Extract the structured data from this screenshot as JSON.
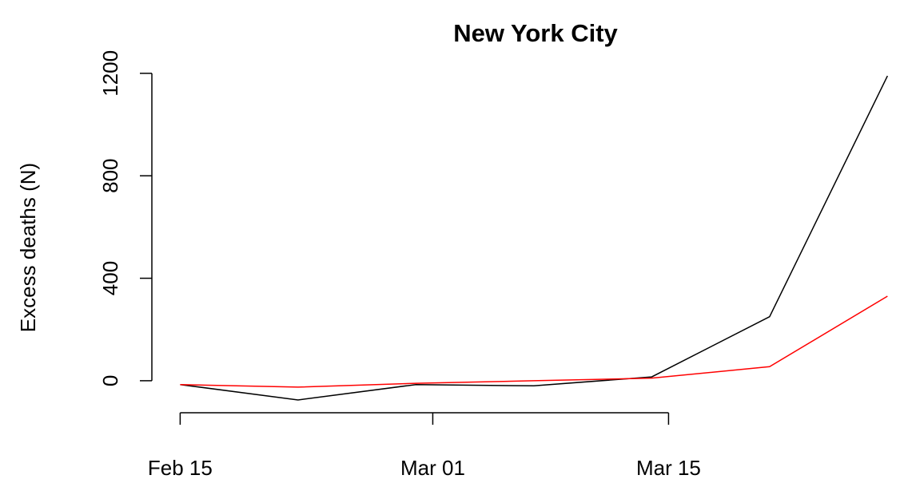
{
  "chart_data": {
    "type": "line",
    "title": "New York City",
    "ylabel": "Excess deaths (N)",
    "x": [
      "Feb 15",
      "Feb 22",
      "Feb 29",
      "Mar 07",
      "Mar 14",
      "Mar 21",
      "Mar 28"
    ],
    "series": [
      {
        "color": "#000000",
        "values": [
          -15,
          -75,
          -15,
          -20,
          15,
          250,
          1190
        ]
      },
      {
        "color": "#ff0000",
        "values": [
          -15,
          -25,
          -10,
          0,
          10,
          55,
          330
        ]
      }
    ],
    "xticks": [
      "Feb 15",
      "Mar 01",
      "Mar 15"
    ],
    "ylim": [
      -125,
      1240
    ],
    "yticks": [
      0,
      400,
      800,
      1200
    ]
  }
}
